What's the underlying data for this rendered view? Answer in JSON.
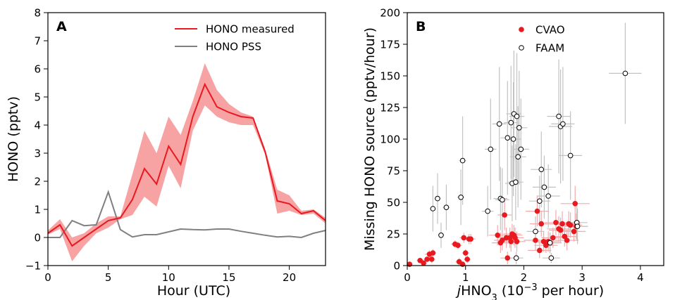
{
  "chart_data": [
    {
      "panel": "A",
      "type": "line",
      "xlabel": "Hour (UTC)",
      "ylabel": "HONO (pptv)",
      "xlim": [
        0,
        23
      ],
      "ylim": [
        -1,
        8
      ],
      "xticks": [
        0,
        5,
        10,
        15,
        20
      ],
      "yticks": [
        -1,
        0,
        1,
        2,
        3,
        4,
        5,
        6,
        7,
        8
      ],
      "legend_position": "top-right",
      "series": [
        {
          "name": "HONO measured",
          "color": "#e8191f",
          "band_color": "#f8a3a3",
          "x": [
            0,
            1,
            2,
            3,
            4,
            5,
            6,
            7,
            8,
            9,
            10,
            11,
            12,
            13,
            14,
            15,
            16,
            17,
            18,
            19,
            20,
            21,
            22,
            23
          ],
          "y": [
            0.15,
            0.45,
            -0.3,
            0.0,
            0.3,
            0.6,
            0.7,
            1.35,
            2.45,
            1.9,
            3.25,
            2.6,
            4.3,
            5.45,
            4.65,
            4.45,
            4.3,
            4.25,
            3.05,
            1.3,
            1.2,
            0.85,
            0.95,
            0.6
          ],
          "lower": [
            0.1,
            0.3,
            -0.85,
            -0.3,
            0.15,
            0.35,
            0.65,
            0.8,
            1.45,
            1.1,
            2.55,
            1.75,
            3.8,
            4.7,
            4.3,
            4.1,
            4.0,
            4.0,
            2.95,
            0.85,
            0.95,
            0.8,
            0.85,
            0.5
          ],
          "upper": [
            0.25,
            0.65,
            0.0,
            0.15,
            0.5,
            0.75,
            0.75,
            2.25,
            3.8,
            3.0,
            4.3,
            3.65,
            4.85,
            6.2,
            5.25,
            4.75,
            4.45,
            4.3,
            3.15,
            1.7,
            1.5,
            0.95,
            1.0,
            0.7
          ]
        },
        {
          "name": "HONO PSS",
          "color": "#808080",
          "x": [
            0,
            1,
            2,
            3,
            4,
            5,
            6,
            7,
            8,
            9,
            10,
            11,
            12,
            13,
            14,
            15,
            16,
            17,
            18,
            19,
            20,
            21,
            22,
            23
          ],
          "y": [
            0.0,
            0.0,
            0.6,
            0.42,
            0.45,
            1.62,
            0.28,
            0.02,
            0.1,
            0.1,
            0.2,
            0.3,
            0.28,
            0.27,
            0.3,
            0.3,
            0.22,
            0.15,
            0.08,
            0.02,
            0.04,
            0.0,
            0.15,
            0.25
          ]
        }
      ]
    },
    {
      "panel": "B",
      "type": "scatter",
      "xlabel_base": "jHNO",
      "xlabel_sub": "3",
      "xlabel_mid": " (10",
      "xlabel_sup": "−3",
      "xlabel_end": " per hour)",
      "ylabel": "Missing HONO source (pptv/hour)",
      "xlim": [
        0,
        4.4
      ],
      "ylim": [
        0,
        200
      ],
      "xticks": [
        0,
        1,
        2,
        3,
        4
      ],
      "yticks": [
        0,
        25,
        50,
        75,
        100,
        125,
        150,
        175,
        200
      ],
      "legend_position": "top-center",
      "series": [
        {
          "name": "CVAO",
          "marker": "filled-circle",
          "color": "#e8191f",
          "errorbar_color": "#f4aaaa",
          "points": [
            [
              0.04,
              1,
              0.05,
              1
            ],
            [
              0.22,
              4,
              0.06,
              2
            ],
            [
              0.28,
              2,
              0.05,
              1
            ],
            [
              0.34,
              5,
              0.06,
              2
            ],
            [
              0.38,
              9,
              0.08,
              3
            ],
            [
              0.42,
              5,
              0.06,
              3
            ],
            [
              0.44,
              10,
              0.06,
              3
            ],
            [
              0.82,
              17,
              0.07,
              3
            ],
            [
              0.87,
              16,
              0.07,
              3
            ],
            [
              0.89,
              3,
              0.06,
              3
            ],
            [
              0.95,
              1,
              0.05,
              2
            ],
            [
              0.97,
              22,
              0.07,
              4
            ],
            [
              1.0,
              10,
              0.06,
              3
            ],
            [
              1.03,
              5,
              0.06,
              3
            ],
            [
              1.06,
              21,
              0.08,
              4
            ],
            [
              1.09,
              21,
              0.08,
              4
            ],
            [
              1.55,
              24,
              0.15,
              8
            ],
            [
              1.6,
              18,
              0.15,
              8
            ],
            [
              1.63,
              20,
              0.14,
              8
            ],
            [
              1.67,
              40,
              0.12,
              12
            ],
            [
              1.7,
              22,
              0.15,
              8
            ],
            [
              1.72,
              6,
              0.12,
              5
            ],
            [
              1.76,
              22,
              0.15,
              8
            ],
            [
              1.78,
              19,
              0.15,
              8
            ],
            [
              1.8,
              25,
              0.15,
              8
            ],
            [
              1.83,
              24,
              0.15,
              8
            ],
            [
              1.85,
              22,
              0.15,
              8
            ],
            [
              1.88,
              19,
              0.15,
              8
            ],
            [
              2.2,
              20,
              0.2,
              8
            ],
            [
              2.23,
              43,
              0.2,
              12
            ],
            [
              2.27,
              12,
              0.2,
              6
            ],
            [
              2.3,
              33,
              0.2,
              10
            ],
            [
              2.34,
              19,
              0.2,
              8
            ],
            [
              2.38,
              16,
              0.2,
              6
            ],
            [
              2.42,
              19,
              0.2,
              8
            ],
            [
              2.45,
              18,
              0.2,
              8
            ],
            [
              2.5,
              22,
              0.2,
              8
            ],
            [
              2.55,
              34,
              0.2,
              10
            ],
            [
              2.6,
              29,
              0.2,
              10
            ],
            [
              2.63,
              28,
              0.2,
              10
            ],
            [
              2.66,
              33,
              0.2,
              10
            ],
            [
              2.7,
              23,
              0.2,
              8
            ],
            [
              2.74,
              20,
              0.2,
              8
            ],
            [
              2.77,
              33,
              0.2,
              10
            ],
            [
              2.8,
              32,
              0.2,
              10
            ],
            [
              2.86,
              27,
              0.2,
              8
            ],
            [
              2.88,
              49,
              0.25,
              14
            ],
            [
              2.9,
              31,
              0.2,
              10
            ]
          ]
        },
        {
          "name": "FAAM",
          "marker": "open-circle",
          "color": "#000000",
          "errorbar_color": "#c2c2c2",
          "points": [
            [
              0.44,
              45,
              0.05,
              18
            ],
            [
              0.52,
              53,
              0.05,
              20
            ],
            [
              0.58,
              24,
              0.05,
              10
            ],
            [
              0.67,
              46,
              0.06,
              18
            ],
            [
              0.92,
              54,
              0.06,
              22
            ],
            [
              0.95,
              83,
              0.06,
              35
            ],
            [
              1.38,
              43,
              0.1,
              20
            ],
            [
              1.43,
              92,
              0.1,
              40
            ],
            [
              1.58,
              112,
              0.12,
              45
            ],
            [
              1.6,
              53,
              0.12,
              25
            ],
            [
              1.63,
              52,
              0.12,
              25
            ],
            [
              1.72,
              101,
              0.12,
              45
            ],
            [
              1.78,
              113,
              0.12,
              45
            ],
            [
              1.8,
              65,
              0.12,
              30
            ],
            [
              1.82,
              100,
              0.13,
              45
            ],
            [
              1.83,
              120,
              0.13,
              50
            ],
            [
              1.86,
              66,
              0.13,
              30
            ],
            [
              1.88,
              118,
              0.13,
              50
            ],
            [
              1.9,
              86,
              0.14,
              40
            ],
            [
              1.92,
              109,
              0.14,
              45
            ],
            [
              1.95,
              92,
              0.14,
              40
            ],
            [
              1.87,
              6,
              0.12,
              5
            ],
            [
              2.2,
              27,
              0.15,
              12
            ],
            [
              2.27,
              51,
              0.18,
              20
            ],
            [
              2.3,
              76,
              0.18,
              30
            ],
            [
              2.35,
              62,
              0.2,
              25
            ],
            [
              2.42,
              55,
              0.2,
              25
            ],
            [
              2.45,
              18,
              0.15,
              8
            ],
            [
              2.47,
              6,
              0.15,
              4
            ],
            [
              2.6,
              118,
              0.2,
              45
            ],
            [
              2.63,
              110,
              0.2,
              45
            ],
            [
              2.67,
              112,
              0.2,
              45
            ],
            [
              2.8,
              87,
              0.2,
              35
            ],
            [
              2.91,
              34,
              0.18,
              14
            ],
            [
              2.92,
              31,
              0.18,
              14
            ],
            [
              3.74,
              152,
              0.28,
              40
            ]
          ]
        }
      ]
    }
  ]
}
